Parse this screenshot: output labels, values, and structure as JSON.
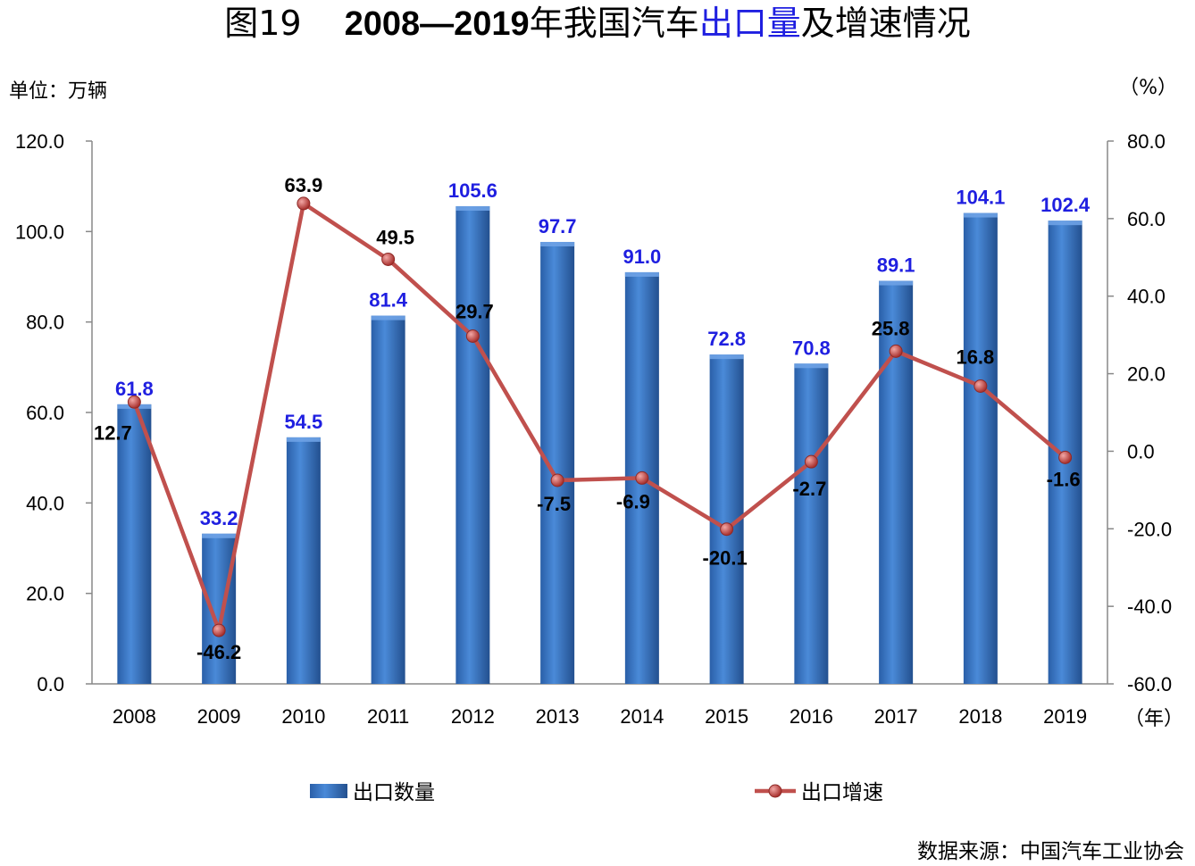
{
  "title": {
    "figure": "图19",
    "years": "2008—2019",
    "text_a": "年我国汽车",
    "text_highlight": "出口量",
    "text_b": "及增速情况"
  },
  "unit_left": "单位：万辆",
  "unit_right": "（%）",
  "x_unit": "（年）",
  "source": "数据来源：中国汽车工业协会",
  "colors": {
    "bar": "#3a78c9",
    "line": "#c0504d",
    "bar_label": "#1f1fe0"
  },
  "chart_data": {
    "type": "bar",
    "categories": [
      "2008",
      "2009",
      "2010",
      "2011",
      "2012",
      "2013",
      "2014",
      "2015",
      "2016",
      "2017",
      "2018",
      "2019"
    ],
    "series": [
      {
        "name": "出口数量",
        "type": "bar",
        "axis": "left",
        "values": [
          61.8,
          33.2,
          54.5,
          81.4,
          105.6,
          97.7,
          91.0,
          72.8,
          70.8,
          89.1,
          104.1,
          102.4
        ],
        "labels": [
          "61.8",
          "33.2",
          "54.5",
          "81.4",
          "105.6",
          "97.7",
          "91.0",
          "72.8",
          "70.8",
          "89.1",
          "104.1",
          "102.4"
        ]
      },
      {
        "name": "出口增速",
        "type": "line",
        "axis": "right",
        "values": [
          12.7,
          -46.2,
          63.9,
          49.5,
          29.7,
          -7.5,
          -6.9,
          -20.1,
          -2.7,
          25.8,
          16.8,
          -1.6
        ],
        "labels": [
          "12.7",
          "-46.2",
          "63.9",
          "49.5",
          "29.7",
          "-7.5",
          "-6.9",
          "-20.1",
          "-2.7",
          "25.8",
          "16.8",
          "-1.6"
        ]
      }
    ],
    "y_left": {
      "ylim": [
        0,
        120
      ],
      "ticks": [
        "0.0",
        "20.0",
        "40.0",
        "60.0",
        "80.0",
        "100.0",
        "120.0"
      ]
    },
    "y_right": {
      "ylim": [
        -60,
        80
      ],
      "ticks": [
        "-60.0",
        "-40.0",
        "-20.0",
        "0.0",
        "20.0",
        "40.0",
        "60.0",
        "80.0"
      ]
    },
    "legend": [
      "出口数量",
      "出口增速"
    ],
    "legend_position": "bottom"
  }
}
